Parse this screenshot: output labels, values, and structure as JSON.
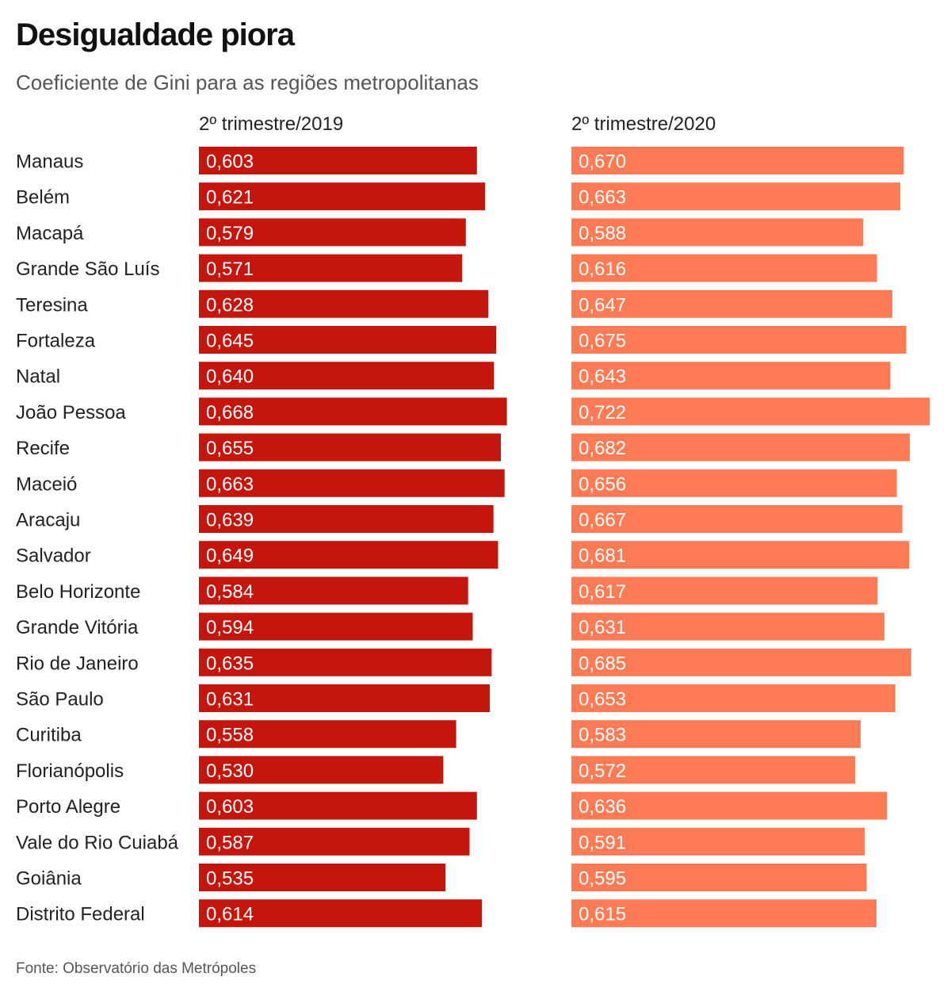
{
  "chart_data": {
    "type": "bar",
    "title": "Desigualdade piora",
    "subtitle": "Coeficiente de Gini para as regiões metropolitanas",
    "source": "Fonte: Observatório das Metrópoles",
    "categories": [
      "Manaus",
      "Belém",
      "Macapá",
      "Grande São Luís",
      "Teresina",
      "Fortaleza",
      "Natal",
      "João Pessoa",
      "Recife",
      "Maceió",
      "Aracaju",
      "Salvador",
      "Belo Horizonte",
      "Grande Vitória",
      "Rio de Janeiro",
      "São Paulo",
      "Curitiba",
      "Florianópolis",
      "Porto Alegre",
      "Vale do Rio Cuiabá",
      "Goiânia",
      "Distrito Federal"
    ],
    "series": [
      {
        "name": "2º trimestre/2019",
        "color": "#c4160c",
        "values": [
          0.603,
          0.621,
          0.579,
          0.571,
          0.628,
          0.645,
          0.64,
          0.668,
          0.655,
          0.663,
          0.639,
          0.649,
          0.584,
          0.594,
          0.635,
          0.631,
          0.558,
          0.53,
          0.603,
          0.587,
          0.535,
          0.614
        ],
        "labels": [
          "0,603",
          "0,621",
          "0,579",
          "0,571",
          "0,628",
          "0,645",
          "0,640",
          "0,668",
          "0,655",
          "0,663",
          "0,639",
          "0,649",
          "0,584",
          "0,594",
          "0,635",
          "0,631",
          "0,558",
          "0,530",
          "0,603",
          "0,587",
          "0,535",
          "0,614"
        ]
      },
      {
        "name": "2º trimestre/2020",
        "color": "#ff7b55",
        "values": [
          0.67,
          0.663,
          0.588,
          0.616,
          0.647,
          0.675,
          0.643,
          0.722,
          0.682,
          0.656,
          0.667,
          0.681,
          0.617,
          0.631,
          0.685,
          0.653,
          0.583,
          0.572,
          0.636,
          0.591,
          0.595,
          0.615
        ],
        "labels": [
          "0,670",
          "0,663",
          "0,588",
          "0,616",
          "0,647",
          "0,675",
          "0,643",
          "0,722",
          "0,682",
          "0,656",
          "0,667",
          "0,681",
          "0,617",
          "0,631",
          "0,685",
          "0,653",
          "0,583",
          "0,572",
          "0,636",
          "0,591",
          "0,595",
          "0,615"
        ]
      }
    ],
    "xlim": [
      0,
      0.722
    ],
    "grid": false,
    "legend": "column-headers"
  }
}
